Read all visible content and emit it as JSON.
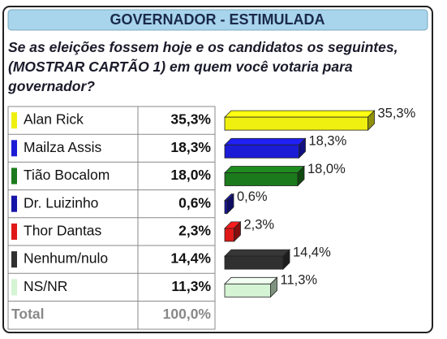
{
  "chart_data": {
    "type": "bar3d-table",
    "title": "GOVERNADOR - ESTIMULADA",
    "subtitle": "Se as eleições fossem hoje e os candidatos os seguintes, (MOSTRAR CARTÃO 1) em quem você votaria para governador?",
    "categories": [
      "Alan Rick",
      "Mailza Assis",
      "Tião Bocalom",
      "Dr. Luizinho",
      "Thor Dantas",
      "Nenhum/nulo",
      "NS/NR"
    ],
    "values": [
      35.3,
      18.3,
      18.0,
      0.6,
      2.3,
      14.4,
      11.3
    ],
    "value_labels": [
      "35,3%",
      "18,3%",
      "18,0%",
      "0,6%",
      "2,3%",
      "14,4%",
      "11,3%"
    ],
    "colors": [
      "#f0f010",
      "#1c1cd6",
      "#1b7a1b",
      "#1515a6",
      "#e01818",
      "#303030",
      "#d4f4d4"
    ],
    "total": {
      "label": "Total",
      "value": 100,
      "value_label": "100,0%"
    }
  }
}
